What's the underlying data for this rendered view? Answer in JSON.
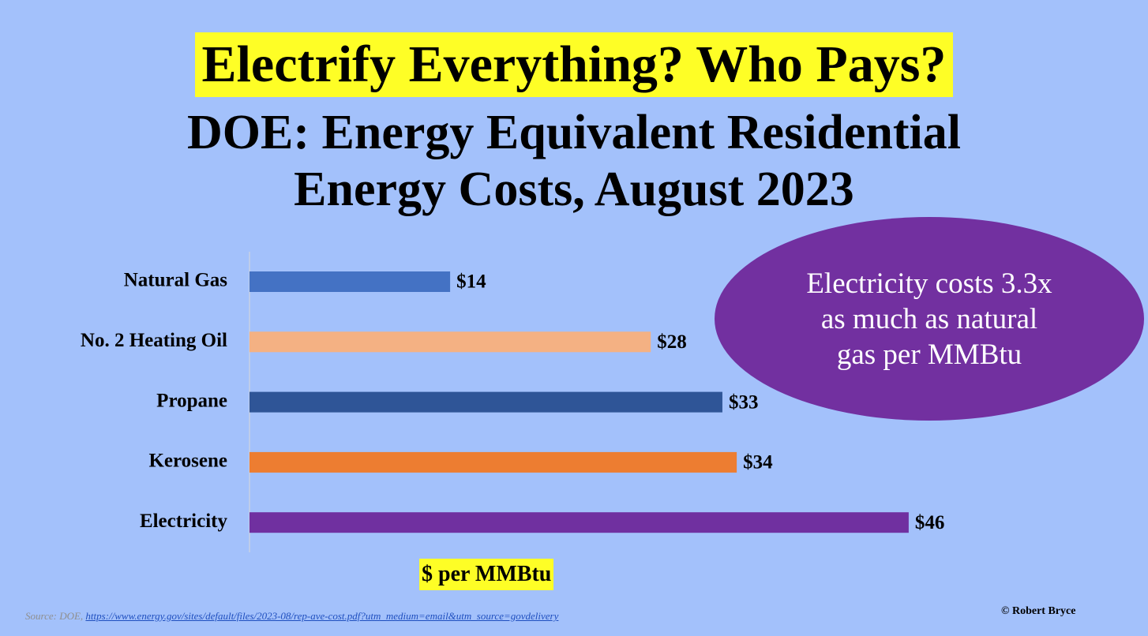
{
  "headline": "Electrify Everything? Who Pays?",
  "subtitle_line1": "DOE: Energy Equivalent Residential",
  "subtitle_line2": "Energy Costs, August 2023",
  "callout": {
    "line1": "Electricity costs 3.3x",
    "line2": "as much as natural",
    "line3": "gas per MMBtu"
  },
  "source": {
    "prefix": "Source: DOE, ",
    "link_text": "https://www.energy.gov/sites/default/files/2023-08/rep-ave-cost.pdf?utm_medium=email&utm_source=govdelivery"
  },
  "copyright": "© Robert Bryce",
  "colors": {
    "background": "#a3c1fb",
    "highlight": "#fefe26",
    "callout": "#7230a0"
  },
  "chart_data": {
    "type": "bar",
    "orientation": "horizontal",
    "categories": [
      "Natural Gas",
      "No. 2 Heating Oil",
      "Propane",
      "Kerosene",
      "Electricity"
    ],
    "values": [
      14,
      28,
      33,
      34,
      46
    ],
    "data_labels": [
      "$14",
      "$28",
      "$33",
      "$34",
      "$46"
    ],
    "bar_colors": [
      "#4472c4",
      "#f4b183",
      "#2f5597",
      "#ed7d31",
      "#7030a0"
    ],
    "xlabel": "$ per MMBtu",
    "ylabel": "",
    "xlim": [
      0,
      48
    ],
    "grid": false,
    "legend": "none"
  }
}
